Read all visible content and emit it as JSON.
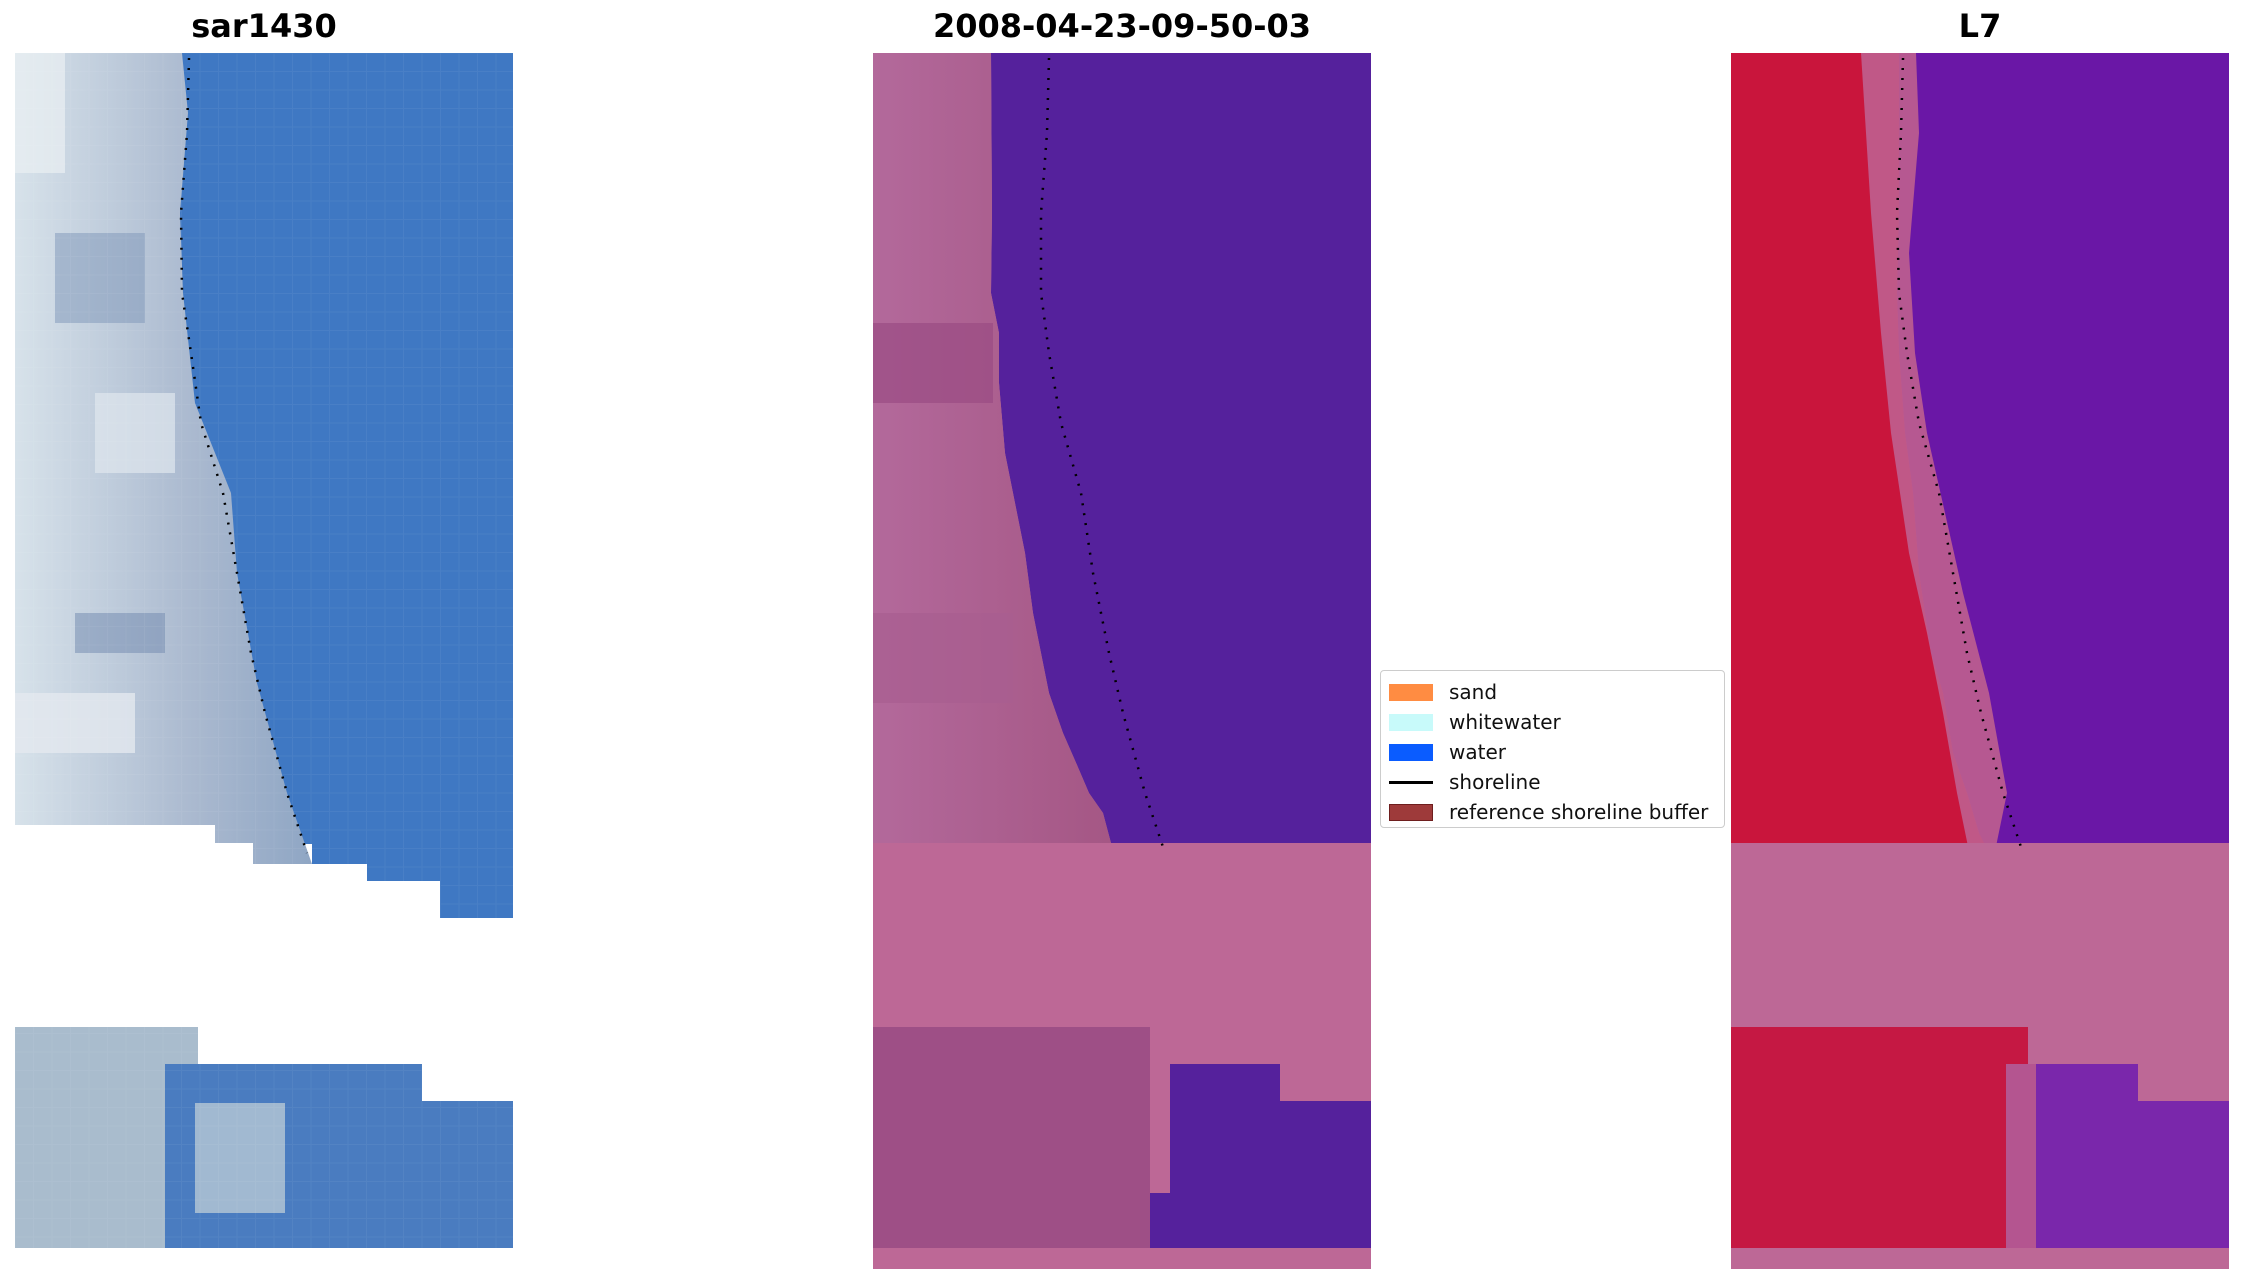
{
  "panels": {
    "rgb": {
      "title": "sar1430"
    },
    "classified": {
      "title": "2008-04-23-09-50-03"
    },
    "index": {
      "title": "L7"
    }
  },
  "legend": {
    "items": [
      {
        "label": "sand",
        "color": "#ff8c42"
      },
      {
        "label": "whitewater",
        "color": "#c8fafa"
      },
      {
        "label": "water",
        "color": "#0a5cff"
      },
      {
        "label": "shoreline",
        "color": "#000000"
      },
      {
        "label": "reference shoreline buffer",
        "color": "#9e3a3a"
      }
    ]
  },
  "colors": {
    "water_rgb": "#3f78c3",
    "land_rgb": "#b4c3d6",
    "water_class": "#55219c",
    "land_class": "#b05f94",
    "buffer_class": "#bd6896",
    "water_index": "#6a17a6",
    "land_index": "#c9153c"
  }
}
